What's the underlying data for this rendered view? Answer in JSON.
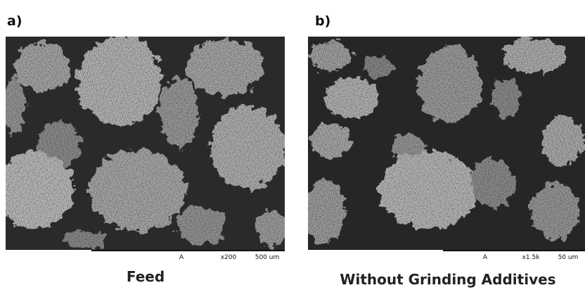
{
  "panels": [
    {
      "label": "a)",
      "image": {
        "detector": "A",
        "magnification": "x200",
        "scale_bar": "500 um"
      },
      "caption": "Feed"
    },
    {
      "label": "b)",
      "image": {
        "detector": "A",
        "magnification": "x1.5k",
        "scale_bar": "50 um"
      },
      "caption": "Without Grinding Additives"
    }
  ]
}
